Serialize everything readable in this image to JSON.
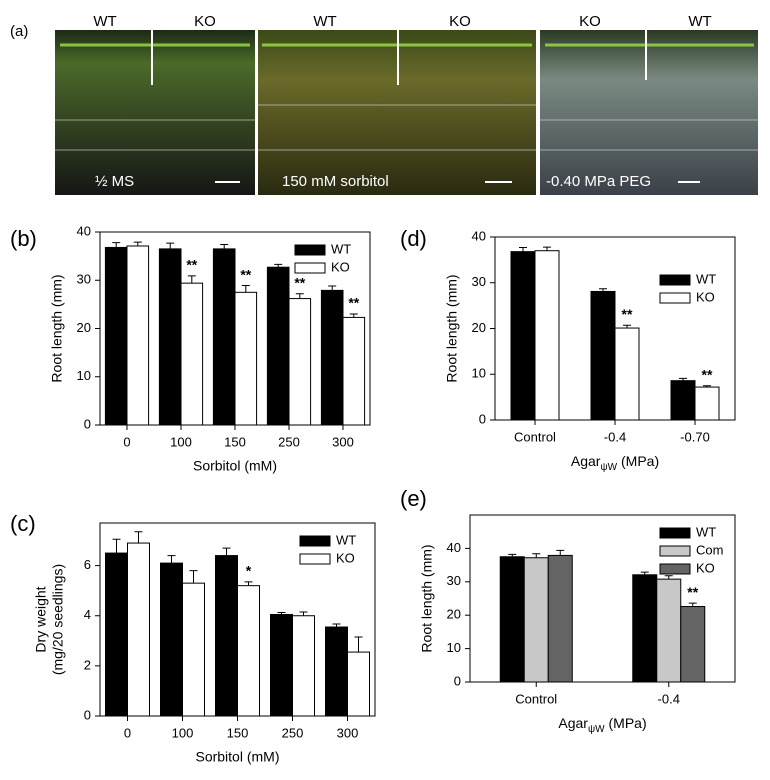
{
  "photo_panel": {
    "label": "(a)",
    "photos": [
      {
        "left": "WT",
        "right": "KO",
        "caption": "½ MS"
      },
      {
        "left": "WT",
        "right": "KO",
        "caption": "150 mM sorbitol"
      },
      {
        "left": "KO",
        "right": "WT",
        "caption": "-0.40 MPa PEG"
      }
    ]
  },
  "chart_data": [
    {
      "type": "bar",
      "panel_label": "(b)",
      "xlabel": "Sorbitol (mM)",
      "ylabel": "Root length (mm)",
      "categories": [
        "0",
        "100",
        "150",
        "250",
        "300"
      ],
      "series": [
        {
          "name": "WT",
          "color": "#000000",
          "values": [
            36.8,
            36.5,
            36.5,
            32.7,
            27.9
          ],
          "errors": [
            1.0,
            1.2,
            0.9,
            0.6,
            0.9
          ],
          "significance": [
            null,
            null,
            null,
            null,
            null
          ]
        },
        {
          "name": "KO",
          "color": "#ffffff",
          "values": [
            37.1,
            29.4,
            27.5,
            26.2,
            22.3
          ],
          "errors": [
            0.8,
            1.5,
            1.4,
            1.0,
            0.7
          ],
          "significance": [
            null,
            "**",
            "**",
            "**",
            "**"
          ]
        }
      ],
      "ylim": [
        0,
        40
      ],
      "yticks": [
        0,
        10,
        20,
        30,
        40
      ],
      "legend": "upper right"
    },
    {
      "type": "bar",
      "panel_label": "(d)",
      "xlabel": [
        "Agar",
        "ψW",
        "(MPa)"
      ],
      "ylabel": "Root length (mm)",
      "categories": [
        "Control",
        "-0.4",
        "-0.70"
      ],
      "series": [
        {
          "name": "WT",
          "color": "#000000",
          "values": [
            36.8,
            28.1,
            8.6
          ],
          "errors": [
            0.9,
            0.6,
            0.5
          ],
          "significance": [
            null,
            null,
            null
          ]
        },
        {
          "name": "KO",
          "color": "#ffffff",
          "values": [
            37.0,
            20.1,
            7.2
          ],
          "errors": [
            0.8,
            0.6,
            0.3
          ],
          "significance": [
            null,
            "**",
            "**"
          ]
        }
      ],
      "ylim": [
        0,
        40
      ],
      "yticks": [
        0,
        10,
        20,
        30,
        40
      ],
      "legend": "upper right"
    },
    {
      "type": "bar",
      "panel_label": "(c)",
      "xlabel": "Sorbitol (mM)",
      "ylabel": [
        "Dry weight",
        "(mg/20 seedlings)"
      ],
      "categories": [
        "0",
        "100",
        "150",
        "250",
        "300"
      ],
      "series": [
        {
          "name": "WT",
          "color": "#000000",
          "values": [
            6.5,
            6.1,
            6.4,
            4.05,
            3.55
          ],
          "errors": [
            0.55,
            0.3,
            0.3,
            0.08,
            0.12
          ],
          "significance": [
            null,
            null,
            null,
            null,
            null
          ]
        },
        {
          "name": "KO",
          "color": "#ffffff",
          "values": [
            6.9,
            5.3,
            5.2,
            4.0,
            2.55
          ],
          "errors": [
            0.45,
            0.5,
            0.15,
            0.15,
            0.6
          ],
          "significance": [
            null,
            null,
            "*",
            null,
            null
          ]
        }
      ],
      "ylim": [
        0,
        7.7
      ],
      "yticks": [
        0,
        2,
        4,
        6
      ],
      "legend": "upper right"
    },
    {
      "type": "bar",
      "panel_label": "(e)",
      "xlabel": [
        "Agar",
        "ψW",
        "(MPa)"
      ],
      "ylabel": "Root length (mm)",
      "categories": [
        "Control",
        "-0.4"
      ],
      "series": [
        {
          "name": "WT",
          "color": "#000000",
          "values": [
            37.5,
            32.1
          ],
          "errors": [
            0.7,
            0.8
          ],
          "significance": [
            null,
            null
          ]
        },
        {
          "name": "Com",
          "color": "#c8c8c8",
          "values": [
            37.2,
            30.8
          ],
          "errors": [
            1.2,
            1.0
          ],
          "significance": [
            null,
            null
          ]
        },
        {
          "name": "KO",
          "color": "#646464",
          "values": [
            37.9,
            22.6
          ],
          "errors": [
            1.5,
            1.0
          ],
          "significance": [
            null,
            "**"
          ]
        }
      ],
      "ylim": [
        0,
        50
      ],
      "yticks": [
        0,
        10,
        20,
        30,
        40
      ],
      "legend": "upper right"
    }
  ]
}
